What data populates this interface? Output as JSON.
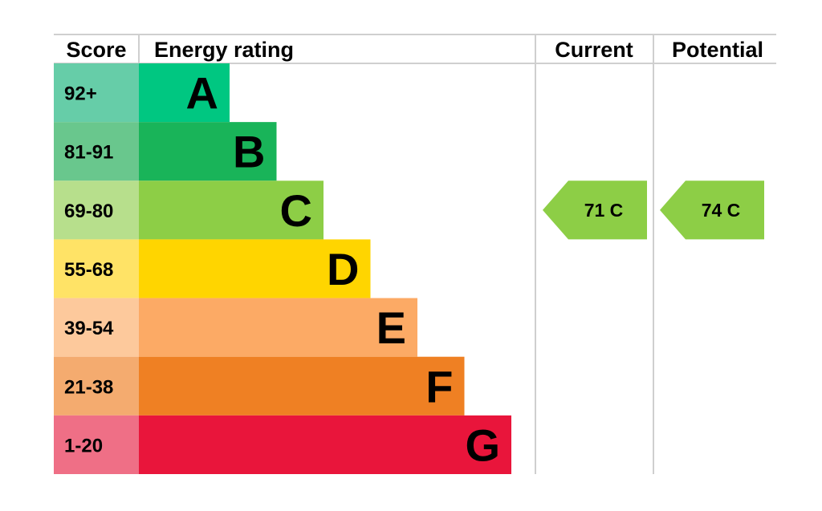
{
  "headers": {
    "score": "Score",
    "energy_rating": "Energy rating",
    "current": "Current",
    "potential": "Potential"
  },
  "chart_data": {
    "type": "bar",
    "bands": [
      {
        "letter": "A",
        "score_range": "92+",
        "bar_color": "#00c781",
        "score_color": "#66cda8"
      },
      {
        "letter": "B",
        "score_range": "81-91",
        "bar_color": "#19b459",
        "score_color": "#69c78d"
      },
      {
        "letter": "C",
        "score_range": "69-80",
        "bar_color": "#8dce46",
        "score_color": "#b7df8c"
      },
      {
        "letter": "D",
        "score_range": "55-68",
        "bar_color": "#ffd500",
        "score_color": "#ffe366"
      },
      {
        "letter": "E",
        "score_range": "39-54",
        "bar_color": "#fcaa65",
        "score_color": "#fdc99c"
      },
      {
        "letter": "F",
        "score_range": "21-38",
        "bar_color": "#ef8023",
        "score_color": "#f4ab6f"
      },
      {
        "letter": "G",
        "score_range": "1-20",
        "bar_color": "#e9153b",
        "score_color": "#ef6f86"
      }
    ],
    "current": {
      "value": 71,
      "band": "C",
      "label": "71  C",
      "color": "#8dce46"
    },
    "potential": {
      "value": 74,
      "band": "C",
      "label": "74  C",
      "color": "#8dce46"
    }
  }
}
